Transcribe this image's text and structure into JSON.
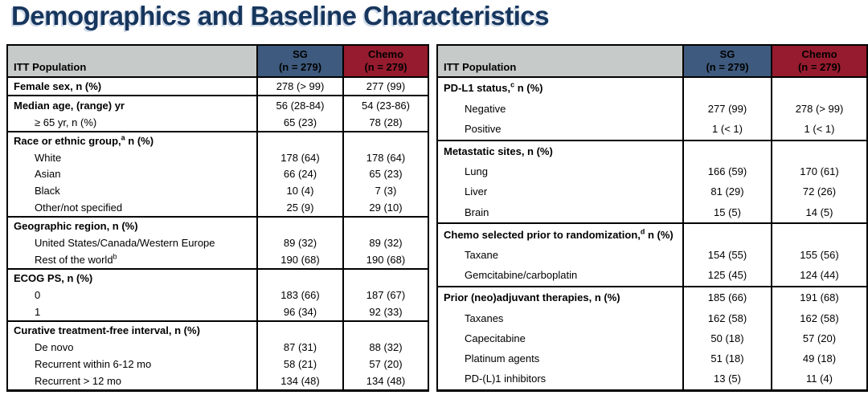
{
  "title": "Demographics and Baseline Characteristics",
  "colors": {
    "title_navy": "#17365D",
    "header_gray": "#C6CAC8",
    "sg_blue": "#3E5A7E",
    "chemo_red": "#961B2E",
    "border": "#000000"
  },
  "tables": [
    {
      "header": {
        "label": "ITT Population",
        "sg_line1": "SG",
        "sg_line2": "(n = 279)",
        "chemo_line1": "Chemo",
        "chemo_line2": "(n = 279)"
      },
      "groups": [
        {
          "rows": [
            {
              "pre": "Female sex, n (%)",
              "bold": true,
              "sg": "278 (> 99)",
              "chemo": "277 (99)"
            }
          ]
        },
        {
          "rows": [
            {
              "pre": "Median age, (range) yr",
              "bold": true,
              "sg": "56 (28-84)",
              "chemo": "54 (23-86)"
            },
            {
              "pre": "≥ 65 yr, n (%)",
              "indent": true,
              "sg": "65 (23)",
              "chemo": "78 (28)"
            }
          ]
        },
        {
          "rows": [
            {
              "pre": "Race or ethnic group,",
              "sup": "a",
              "post": " n (%)",
              "bold": true,
              "sg": "",
              "chemo": ""
            },
            {
              "pre": "White",
              "indent": true,
              "sg": "178 (64)",
              "chemo": "178 (64)"
            },
            {
              "pre": "Asian",
              "indent": true,
              "sg": "66 (24)",
              "chemo": "65 (23)"
            },
            {
              "pre": "Black",
              "indent": true,
              "sg": "10 (4)",
              "chemo": "7 (3)"
            },
            {
              "pre": "Other/not specified",
              "indent": true,
              "sg": "25 (9)",
              "chemo": "29 (10)"
            }
          ]
        },
        {
          "rows": [
            {
              "pre": "Geographic region, n (%)",
              "bold": true,
              "sg": "",
              "chemo": ""
            },
            {
              "pre": "United States/Canada/Western Europe",
              "indent": true,
              "sg": "89 (32)",
              "chemo": "89 (32)"
            },
            {
              "pre": "Rest of the world",
              "sup": "b",
              "post": "",
              "indent": true,
              "sg": "190 (68)",
              "chemo": "190 (68)"
            }
          ]
        },
        {
          "rows": [
            {
              "pre": "ECOG PS, n (%)",
              "bold": true,
              "sg": "",
              "chemo": ""
            },
            {
              "pre": "0",
              "indent": true,
              "sg": "183 (66)",
              "chemo": "187 (67)"
            },
            {
              "pre": "1",
              "indent": true,
              "sg": "96 (34)",
              "chemo": "92 (33)"
            }
          ]
        },
        {
          "rows": [
            {
              "pre": "Curative treatment-free interval, n (%)",
              "bold": true,
              "sg": "",
              "chemo": ""
            },
            {
              "pre": "De novo",
              "indent": true,
              "sg": "87 (31)",
              "chemo": "88 (32)"
            },
            {
              "pre": "Recurrent within 6-12 mo",
              "indent": true,
              "sg": "58 (21)",
              "chemo": "57 (20)"
            },
            {
              "pre": "Recurrent > 12 mo",
              "indent": true,
              "sg": "134 (48)",
              "chemo": "134 (48)"
            }
          ]
        }
      ]
    },
    {
      "header": {
        "label": "ITT Population",
        "sg_line1": "SG",
        "sg_line2": "(n = 279)",
        "chemo_line1": "Chemo",
        "chemo_line2": "(n = 279)"
      },
      "groups": [
        {
          "rows": [
            {
              "pre": "PD-L1 status,",
              "sup": "c",
              "post": " n (%)",
              "bold": true,
              "sg": "",
              "chemo": ""
            },
            {
              "pre": "Negative",
              "indent": true,
              "sg": "277 (99)",
              "chemo": "278 (> 99)"
            },
            {
              "pre": "Positive",
              "indent": true,
              "sg": "1 (< 1)",
              "chemo": "1 (< 1)"
            }
          ]
        },
        {
          "rows": [
            {
              "pre": "Metastatic sites, n (%)",
              "bold": true,
              "sg": "",
              "chemo": ""
            },
            {
              "pre": "Lung",
              "indent": true,
              "sg": "166 (59)",
              "chemo": "170 (61)"
            },
            {
              "pre": "Liver",
              "indent": true,
              "sg": "81 (29)",
              "chemo": "72 (26)"
            },
            {
              "pre": "Brain",
              "indent": true,
              "sg": "15 (5)",
              "chemo": "14 (5)"
            }
          ]
        },
        {
          "rows": [
            {
              "pre": "Chemo selected prior to randomization,",
              "sup": "d",
              "post": " n (%)",
              "bold": true,
              "sg": "",
              "chemo": ""
            },
            {
              "pre": "Taxane",
              "indent": true,
              "sg": "154 (55)",
              "chemo": "155 (56)"
            },
            {
              "pre": "Gemcitabine/carboplatin",
              "indent": true,
              "sg": "125 (45)",
              "chemo": "124 (44)"
            }
          ]
        },
        {
          "rows": [
            {
              "pre": "Prior (neo)adjuvant therapies, n (%)",
              "bold": true,
              "sg": "185 (66)",
              "chemo": "191 (68)"
            },
            {
              "pre": "Taxanes",
              "indent": true,
              "sg": "162 (58)",
              "chemo": "162 (58)"
            },
            {
              "pre": "Capecitabine",
              "indent": true,
              "sg": "50 (18)",
              "chemo": "57 (20)"
            },
            {
              "pre": "Platinum agents",
              "indent": true,
              "sg": "51 (18)",
              "chemo": "49 (18)"
            },
            {
              "pre": "PD-(L)1 inhibitors",
              "indent": true,
              "sg": "13 (5)",
              "chemo": "11 (4)"
            }
          ]
        }
      ]
    }
  ]
}
